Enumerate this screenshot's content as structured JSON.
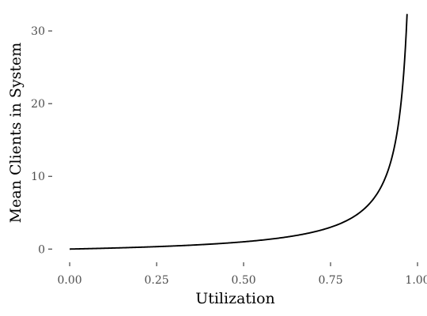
{
  "chart_data": {
    "type": "line",
    "title": "",
    "xlabel": "Utilization",
    "ylabel": "Mean Clients in System",
    "xlim": [
      -0.048,
      1.0
    ],
    "ylim": [
      -1.6,
      33.6
    ],
    "x_ticks": [
      0.0,
      0.25,
      0.5,
      0.75,
      1.0
    ],
    "x_tick_labels": [
      "0.00",
      "0.25",
      "0.50",
      "0.75",
      "1.00"
    ],
    "y_ticks": [
      0,
      10,
      20,
      30
    ],
    "y_tick_labels": [
      "0",
      "10",
      "20",
      "30"
    ],
    "grid": false,
    "legend": "none",
    "series": [
      {
        "color": "#000000",
        "x": [
          0.0,
          0.05,
          0.1,
          0.15,
          0.2,
          0.25,
          0.3,
          0.35,
          0.4,
          0.45,
          0.5,
          0.55,
          0.6,
          0.65,
          0.7,
          0.75,
          0.8,
          0.82,
          0.84,
          0.86,
          0.88,
          0.9,
          0.91,
          0.92,
          0.93,
          0.94,
          0.95,
          0.955,
          0.96,
          0.965,
          0.97
        ],
        "y": [
          0.0,
          0.053,
          0.111,
          0.176,
          0.25,
          0.333,
          0.429,
          0.538,
          0.667,
          0.818,
          1.0,
          1.222,
          1.5,
          1.857,
          2.333,
          3.0,
          4.0,
          4.556,
          5.25,
          6.143,
          7.333,
          9.0,
          10.111,
          11.5,
          13.286,
          15.667,
          19.0,
          21.222,
          24.0,
          27.571,
          32.333
        ]
      }
    ]
  }
}
